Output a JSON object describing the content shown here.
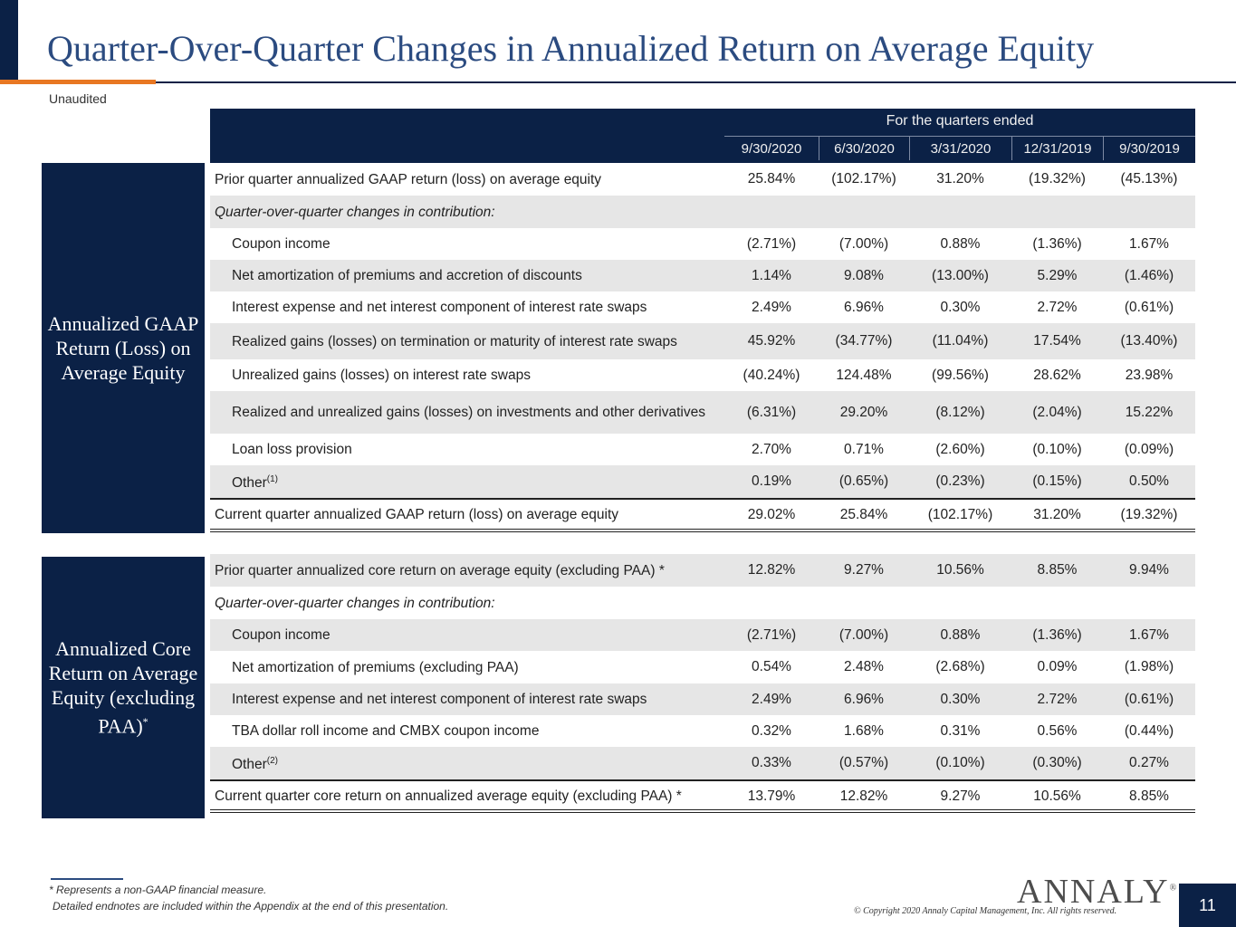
{
  "header": {
    "title": "Quarter-Over-Quarter Changes in Annualized Return on Average Equity",
    "subtitle": "Unaudited"
  },
  "table_header": {
    "period_label": "For the quarters ended",
    "dates": [
      "9/30/2020",
      "6/30/2020",
      "3/31/2020",
      "12/31/2019",
      "9/30/2019"
    ]
  },
  "section1": {
    "side_label": "Annualized GAAP Return (Loss) on Average Equity",
    "rows": [
      {
        "label": "Prior quarter annualized GAAP return (loss) on average equity",
        "values": [
          "25.84%",
          "(102.17%)",
          "31.20%",
          "(19.32%)",
          "(45.13%)"
        ]
      },
      {
        "label": "Quarter-over-quarter changes in contribution:",
        "values": [
          "",
          "",
          "",
          "",
          ""
        ]
      },
      {
        "label": "Coupon income",
        "values": [
          "(2.71%)",
          "(7.00%)",
          "0.88%",
          "(1.36%)",
          "1.67%"
        ]
      },
      {
        "label": "Net amortization of premiums and accretion of discounts",
        "values": [
          "1.14%",
          "9.08%",
          "(13.00%)",
          "5.29%",
          "(1.46%)"
        ]
      },
      {
        "label": "Interest expense and net interest component of interest rate swaps",
        "values": [
          "2.49%",
          "6.96%",
          "0.30%",
          "2.72%",
          "(0.61%)"
        ]
      },
      {
        "label": "Realized gains (losses) on termination or maturity of interest rate swaps",
        "values": [
          "45.92%",
          "(34.77%)",
          "(11.04%)",
          "17.54%",
          "(13.40%)"
        ]
      },
      {
        "label": "Unrealized gains (losses) on interest rate swaps",
        "values": [
          "(40.24%)",
          "124.48%",
          "(99.56%)",
          "28.62%",
          "23.98%"
        ]
      },
      {
        "label": "Realized and unrealized gains (losses) on investments and other derivatives",
        "values": [
          "(6.31%)",
          "29.20%",
          "(8.12%)",
          "(2.04%)",
          "15.22%"
        ]
      },
      {
        "label": "Loan loss provision",
        "values": [
          "2.70%",
          "0.71%",
          "(2.60%)",
          "(0.10%)",
          "(0.09%)"
        ]
      },
      {
        "label": "Other",
        "note": "(1)",
        "values": [
          "0.19%",
          "(0.65%)",
          "(0.23%)",
          "(0.15%)",
          "0.50%"
        ]
      },
      {
        "label": "Current quarter annualized GAAP return (loss) on average equity",
        "values": [
          "29.02%",
          "25.84%",
          "(102.17%)",
          "31.20%",
          "(19.32%)"
        ]
      }
    ]
  },
  "section2": {
    "side_label": "Annualized Core Return on Average Equity (excluding PAA)",
    "side_mark": "*",
    "rows": [
      {
        "label": "Prior quarter annualized core return on average equity (excluding PAA) *",
        "values": [
          "12.82%",
          "9.27%",
          "10.56%",
          "8.85%",
          "9.94%"
        ]
      },
      {
        "label": "Quarter-over-quarter changes in contribution:",
        "values": [
          "",
          "",
          "",
          "",
          ""
        ]
      },
      {
        "label": "Coupon income",
        "values": [
          "(2.71%)",
          "(7.00%)",
          "0.88%",
          "(1.36%)",
          "1.67%"
        ]
      },
      {
        "label": "Net amortization of premiums (excluding PAA)",
        "values": [
          "0.54%",
          "2.48%",
          "(2.68%)",
          "0.09%",
          "(1.98%)"
        ]
      },
      {
        "label": "Interest expense and net interest component of interest rate swaps",
        "values": [
          "2.49%",
          "6.96%",
          "0.30%",
          "2.72%",
          "(0.61%)"
        ]
      },
      {
        "label": "TBA dollar roll income and CMBX coupon income",
        "values": [
          "0.32%",
          "1.68%",
          "0.31%",
          "0.56%",
          "(0.44%)"
        ]
      },
      {
        "label": "Other",
        "note": "(2)",
        "values": [
          "0.33%",
          "(0.57%)",
          "(0.10%)",
          "(0.30%)",
          "0.27%"
        ]
      },
      {
        "label": "Current quarter core return on annualized average equity (excluding PAA) *",
        "values": [
          "13.79%",
          "12.82%",
          "9.27%",
          "10.56%",
          "8.85%"
        ]
      }
    ]
  },
  "footer": {
    "note1": "* Represents a non-GAAP financial measure.",
    "note2": "Detailed endnotes are included within the Appendix at the end of this presentation.",
    "logo": "ANNALY",
    "logo_mark": "®",
    "copyright": "© Copyright 2020 Annaly Capital Management, Inc.  All rights reserved.",
    "page_number": "11"
  }
}
